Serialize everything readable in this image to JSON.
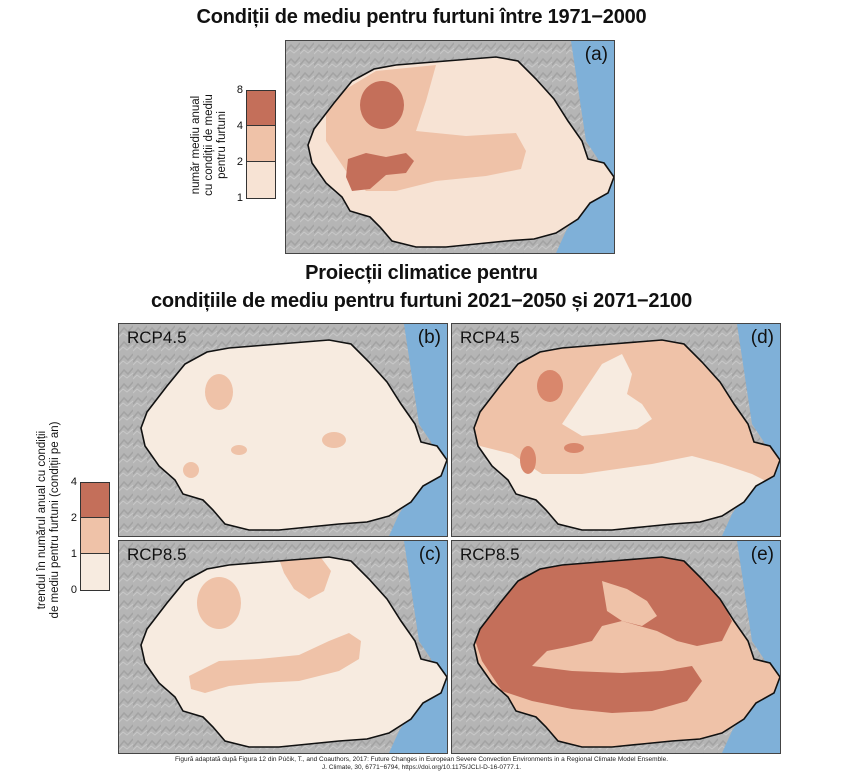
{
  "titles": {
    "historical": "Condiții de mediu pentru furtuni între 1971−2000",
    "projections_line1": "Proiecții climatice pentru",
    "projections_line2": "condițiile de mediu pentru furtuni 2021−2050 și 2071−2100"
  },
  "legend_historical": {
    "title_lines": [
      "număr mediu anual",
      "cu condiții de mediu",
      "pentru furtuni"
    ],
    "ticks": [
      "8",
      "4",
      "2",
      "1"
    ],
    "colors": [
      "#c46f5a",
      "#efc2a8",
      "#f7e3d4"
    ]
  },
  "legend_projections": {
    "title_lines": [
      "trendul în numărul anual cu condiții",
      "de mediu pentru furtuni (condiții pe an)"
    ],
    "ticks": [
      "4",
      "2",
      "1",
      "0"
    ],
    "colors": [
      "#c46f5a",
      "#efc2a8",
      "#f7ebe0"
    ]
  },
  "panels": {
    "a": {
      "letter": "(a)",
      "scenario": ""
    },
    "b": {
      "letter": "(b)",
      "scenario": "RCP4.5"
    },
    "c": {
      "letter": "(c)",
      "scenario": "RCP8.5"
    },
    "d": {
      "letter": "(d)",
      "scenario": "RCP4.5"
    },
    "e": {
      "letter": "(e)",
      "scenario": "RCP8.5"
    }
  },
  "colors": {
    "terrain": "#b8b8b8",
    "sea": "#7fb0d8",
    "class_low": "#f7e3d4",
    "class_mid": "#efc2a8",
    "class_high": "#c46f5a",
    "class_zero": "#f7ebe0"
  },
  "footer": {
    "line1": "Figură adaptată după Figura 12 din Púčik, T., and Coauthors, 2017: Future Changes in European Severe Convection Environments in a Regional Climate Model Ensemble.",
    "line2": "J. Climate, 30, 6771−6794, https://doi.org/10.1175/JCLI-D-16-0777.1."
  }
}
